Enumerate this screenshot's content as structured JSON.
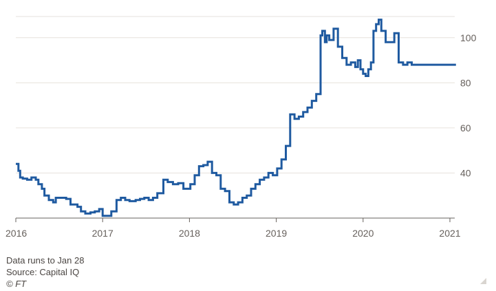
{
  "chart_data": {
    "type": "line",
    "title": "",
    "xlabel": "",
    "ylabel": "",
    "xlim": [
      2016.0,
      2021.1
    ],
    "ylim": [
      20,
      110
    ],
    "y_ticks": [
      40,
      60,
      80,
      100
    ],
    "x_ticks": [
      2016,
      2017,
      2018,
      2019,
      2020,
      2021
    ],
    "x_tick_labels": [
      "2016",
      "2017",
      "2018",
      "2019",
      "2020",
      "2021"
    ],
    "y_tick_labels": [
      "40",
      "60",
      "80",
      "100"
    ],
    "grid": "horizontal",
    "line_color": "#1f5aa0",
    "series": [
      {
        "name": "",
        "x": [
          2016.0,
          2016.03,
          2016.05,
          2016.08,
          2016.13,
          2016.18,
          2016.23,
          2016.26,
          2016.3,
          2016.33,
          2016.38,
          2016.43,
          2016.46,
          2016.53,
          2016.58,
          2016.63,
          2016.71,
          2016.75,
          2016.8,
          2016.86,
          2016.91,
          2016.96,
          2017.0,
          2017.05,
          2017.1,
          2017.16,
          2017.21,
          2017.26,
          2017.31,
          2017.38,
          2017.43,
          2017.48,
          2017.53,
          2017.58,
          2017.63,
          2017.7,
          2017.75,
          2017.81,
          2017.87,
          2017.93,
          2017.96,
          2018.01,
          2018.06,
          2018.11,
          2018.16,
          2018.21,
          2018.26,
          2018.31,
          2018.36,
          2018.41,
          2018.46,
          2018.51,
          2018.56,
          2018.61,
          2018.66,
          2018.71,
          2018.76,
          2018.81,
          2018.86,
          2018.91,
          2018.96,
          2019.01,
          2019.06,
          2019.11,
          2019.16,
          2019.21,
          2019.26,
          2019.31,
          2019.36,
          2019.41,
          2019.46,
          2019.51,
          2019.53,
          2019.56,
          2019.58,
          2019.61,
          2019.66,
          2019.71,
          2019.76,
          2019.81,
          2019.86,
          2019.91,
          2019.94,
          2019.97,
          2020.0,
          2020.03,
          2020.06,
          2020.09,
          2020.12,
          2020.15,
          2020.18,
          2020.21,
          2020.26,
          2020.31,
          2020.36,
          2020.41,
          2020.46,
          2020.51,
          2020.56,
          2020.61,
          2020.66,
          2020.71,
          2020.76,
          2020.8,
          2020.83,
          2020.86,
          2020.89,
          2020.92,
          2020.95,
          2020.98,
          2021.01,
          2021.03,
          2021.05,
          2021.07
        ],
        "y": [
          44,
          41,
          38,
          37.5,
          37,
          38,
          37,
          35,
          33,
          30,
          28,
          27,
          29,
          29,
          28.5,
          26,
          25,
          23,
          22,
          22.5,
          23,
          24,
          21,
          21,
          23,
          28,
          29,
          28,
          27.5,
          28,
          28.5,
          29,
          28,
          29,
          31,
          37,
          36,
          35,
          35.5,
          33,
          33,
          35,
          39,
          43,
          43.5,
          45,
          40,
          39,
          33,
          32,
          27,
          26,
          27,
          29,
          30,
          33,
          35,
          37,
          38,
          40,
          39,
          42,
          46,
          52,
          66,
          64,
          65,
          67,
          69,
          72,
          75,
          101,
          103,
          98,
          101,
          99,
          104,
          96,
          91,
          88,
          89,
          87,
          90,
          86,
          84,
          83,
          86,
          89,
          103,
          106,
          108,
          103,
          98,
          98,
          102,
          89,
          88,
          89,
          88,
          88,
          88,
          88,
          88,
          88,
          88,
          88,
          88,
          88,
          88,
          88,
          88,
          88,
          88,
          88
        ]
      }
    ]
  },
  "footer": {
    "note": "Data runs to Jan 28",
    "source": "Source: Capital IQ",
    "copyright": "© FT"
  }
}
